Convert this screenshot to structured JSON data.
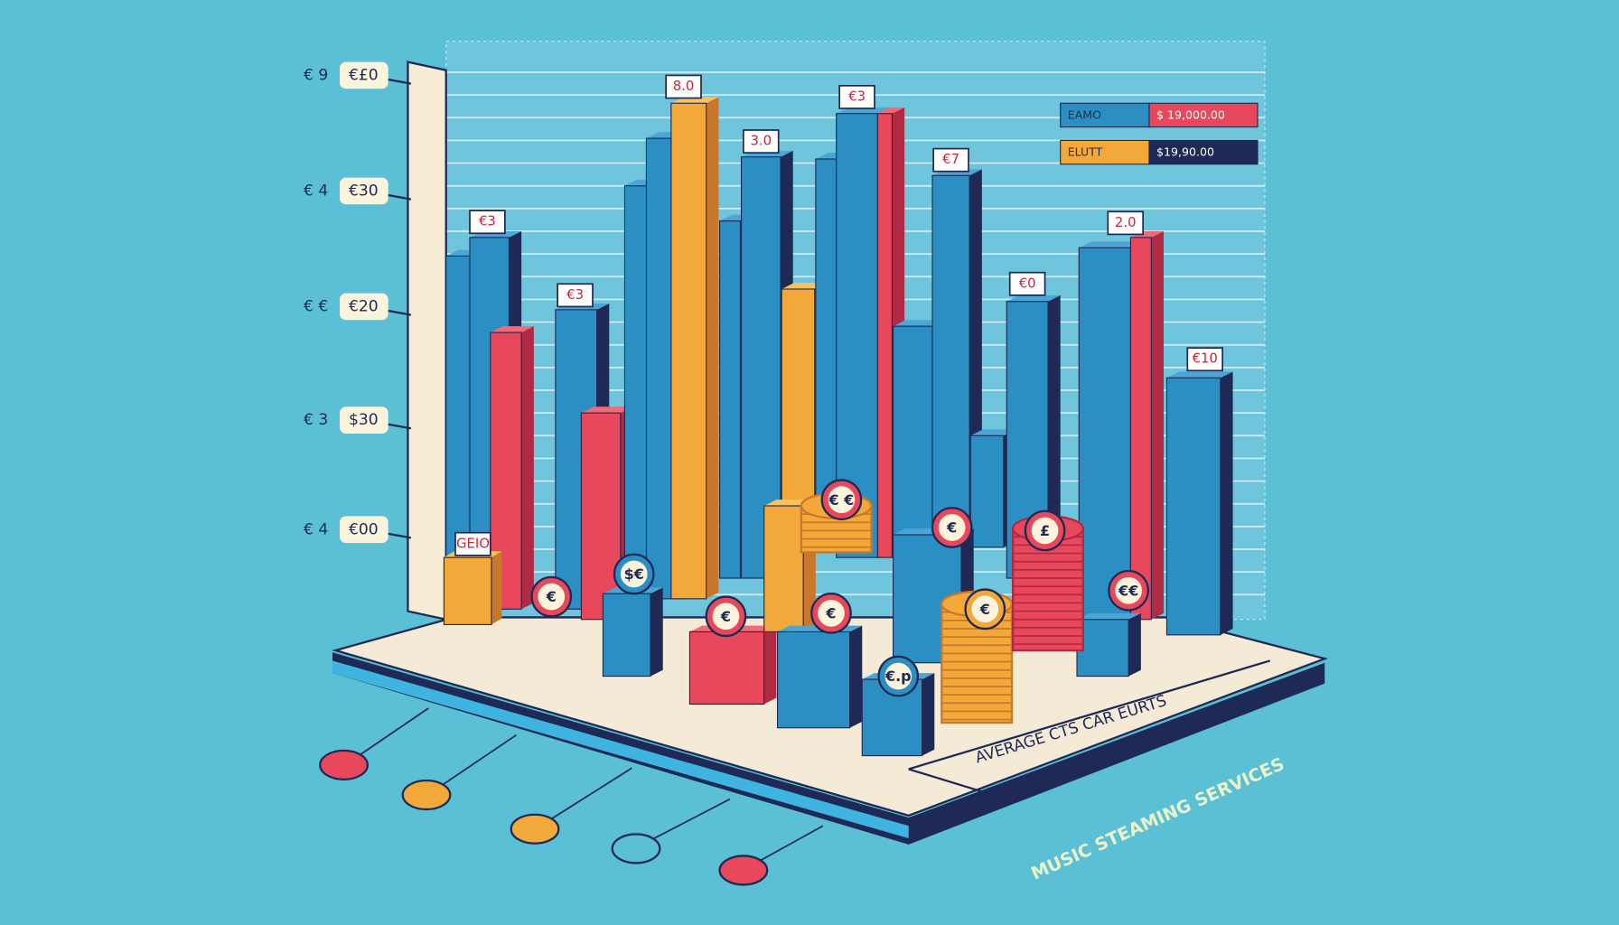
{
  "y_axis_labels": [
    {
      "prefix": "€ 9",
      "value": "€£0"
    },
    {
      "prefix": "€ 4",
      "value": "€30"
    },
    {
      "prefix": "€ €",
      "value": "€20"
    },
    {
      "prefix": "€ 3",
      "value": "$30"
    },
    {
      "prefix": "€ 4",
      "value": "€00"
    }
  ],
  "legend": [
    {
      "label": "EAMO",
      "value": "$ 19,000.00"
    },
    {
      "label": "ELUTT",
      "value": "$19,90.00"
    }
  ],
  "bar_labels": [
    "€3",
    "€3",
    "8.0",
    "3.0",
    "€3",
    "€7",
    "€0",
    "2.0",
    "€10",
    "GEIO"
  ],
  "coin_labels": [
    "€",
    "$€",
    "€",
    "€",
    "€ €",
    "€",
    "€",
    "€€",
    "£",
    "€.p"
  ],
  "axis_title": "AVERAGE CTS  CAR EURTS",
  "title": "MUSIC STEAMING SERVICES"
}
